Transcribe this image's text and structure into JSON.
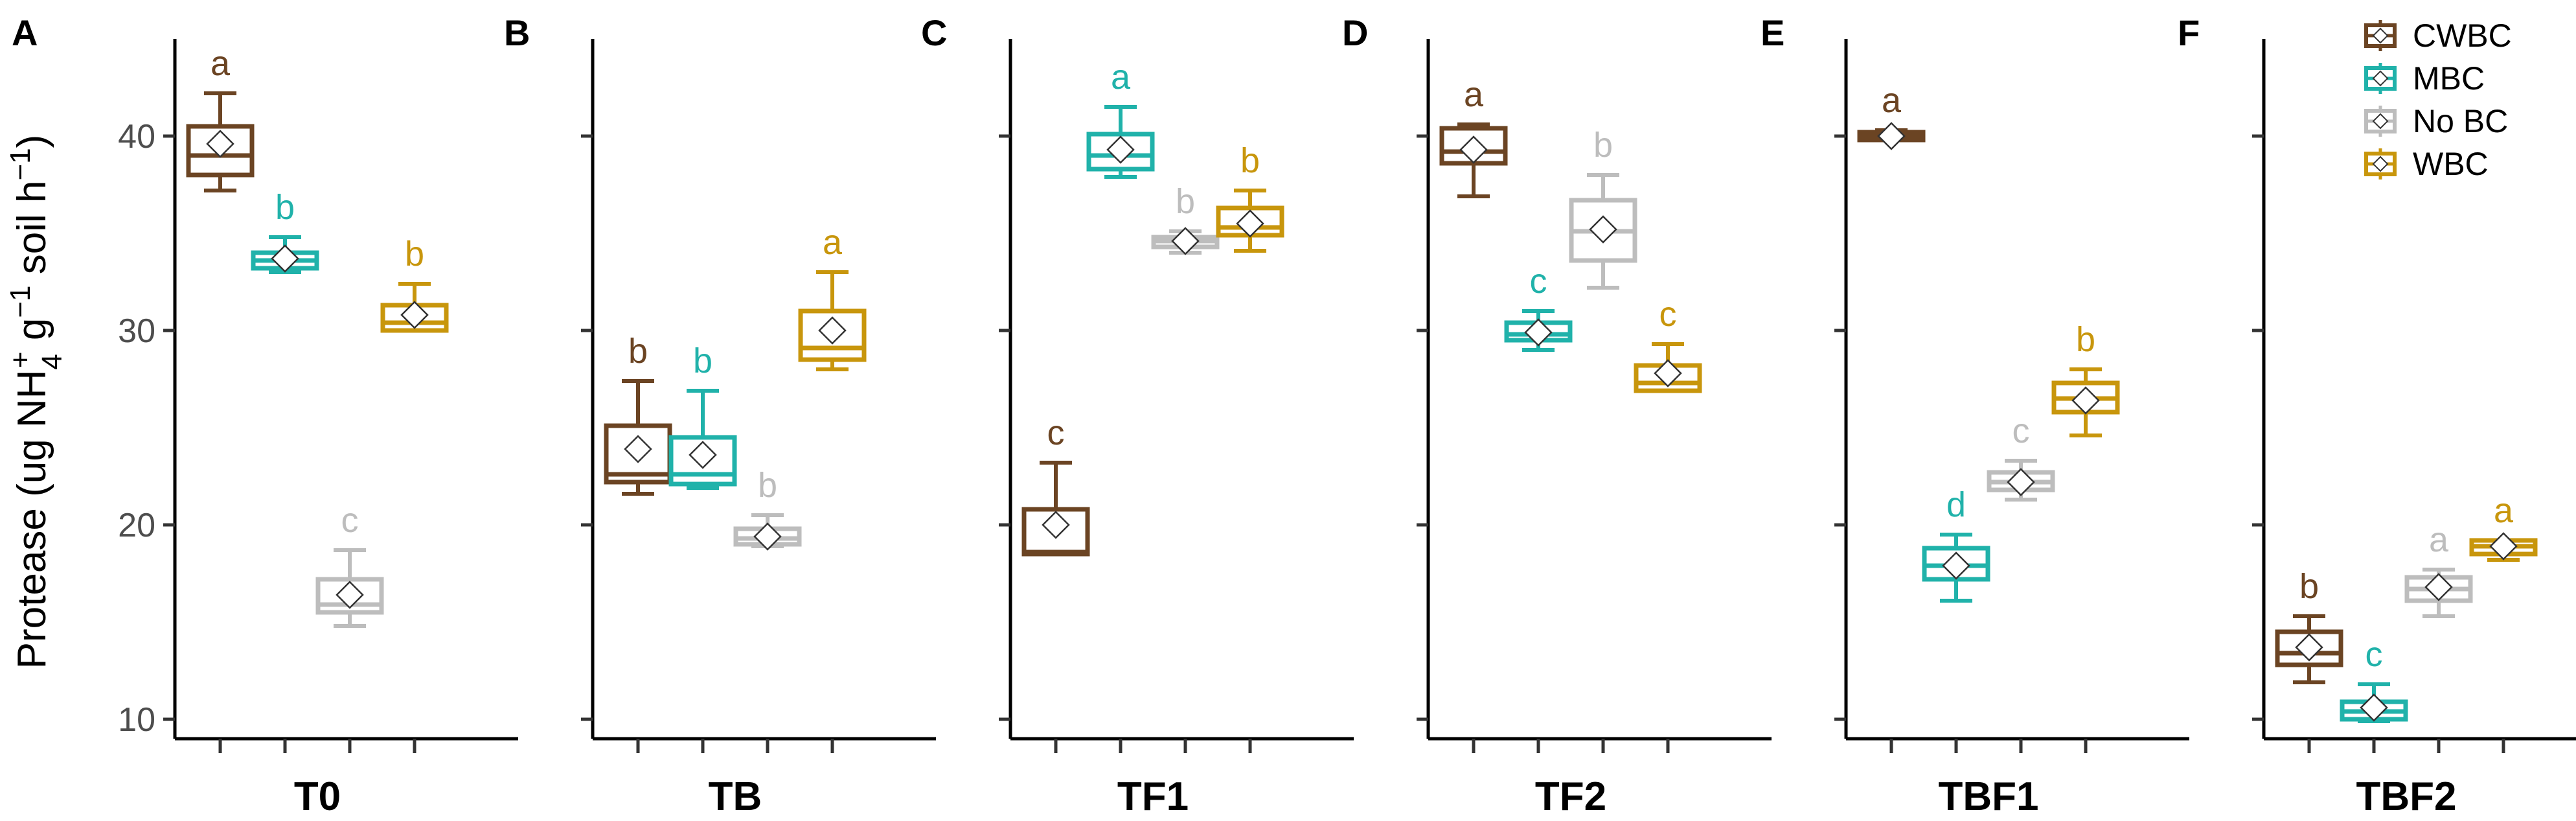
{
  "chart_data": {
    "type": "box",
    "ylabel": "Protease (ug NH4+ g−1 soil h−1)",
    "ylabel_parts": {
      "prefix": "Protease (ug NH",
      "sub": "4",
      "sup_plus": "+",
      "mid": " g",
      "sup_neg1": "−1",
      "suffix": " soil h",
      "sup_neg1b": "−1",
      "close": ")"
    },
    "ylim": [
      9,
      45
    ],
    "yticks": [
      10,
      20,
      30,
      40
    ],
    "groups": [
      "CWBC",
      "MBC",
      "No BC",
      "WBC"
    ],
    "colors": {
      "CWBC": "#6b4423",
      "MBC": "#20b2aa",
      "No BC": "#bdbdbd",
      "WBC": "#c8960c"
    },
    "legend": [
      "CWBC",
      "MBC",
      "No BC",
      "WBC"
    ],
    "panels": [
      {
        "letter": "A",
        "label": "T0",
        "boxes": [
          {
            "group": "CWBC",
            "min": 37.2,
            "q1": 38.0,
            "median": 39.0,
            "q3": 40.5,
            "max": 42.2,
            "mean": 39.6,
            "sig": "a"
          },
          {
            "group": "MBC",
            "min": 33.0,
            "q1": 33.2,
            "median": 33.6,
            "q3": 34.0,
            "max": 34.8,
            "mean": 33.7,
            "sig": "b"
          },
          {
            "group": "No BC",
            "min": 14.8,
            "q1": 15.5,
            "median": 15.9,
            "q3": 17.2,
            "max": 18.7,
            "mean": 16.4,
            "sig": "c"
          },
          {
            "group": "WBC",
            "min": 30.0,
            "q1": 30.0,
            "median": 30.4,
            "q3": 31.3,
            "max": 32.4,
            "mean": 30.8,
            "sig": "b"
          }
        ]
      },
      {
        "letter": "B",
        "label": "TB",
        "boxes": [
          {
            "group": "CWBC",
            "min": 21.6,
            "q1": 22.2,
            "median": 22.6,
            "q3": 25.1,
            "max": 27.4,
            "mean": 23.9,
            "sig": "b"
          },
          {
            "group": "MBC",
            "min": 21.9,
            "q1": 22.1,
            "median": 22.6,
            "q3": 24.5,
            "max": 26.9,
            "mean": 23.6,
            "sig": "b"
          },
          {
            "group": "No BC",
            "min": 18.9,
            "q1": 19.0,
            "median": 19.3,
            "q3": 19.8,
            "max": 20.5,
            "mean": 19.4,
            "sig": "b"
          },
          {
            "group": "WBC",
            "min": 28.0,
            "q1": 28.5,
            "median": 29.1,
            "q3": 31.0,
            "max": 33.0,
            "mean": 30.0,
            "sig": "a"
          }
        ]
      },
      {
        "letter": "C",
        "label": "TF1",
        "boxes": [
          {
            "group": "CWBC",
            "min": 18.5,
            "q1": 18.5,
            "median": 18.6,
            "q3": 20.8,
            "max": 23.2,
            "mean": 20.0,
            "sig": "c"
          },
          {
            "group": "MBC",
            "min": 37.9,
            "q1": 38.3,
            "median": 39.0,
            "q3": 40.1,
            "max": 41.5,
            "mean": 39.3,
            "sig": "a"
          },
          {
            "group": "No BC",
            "min": 34.0,
            "q1": 34.3,
            "median": 34.6,
            "q3": 34.8,
            "max": 35.1,
            "mean": 34.6,
            "sig": "b"
          },
          {
            "group": "WBC",
            "min": 34.1,
            "q1": 34.9,
            "median": 35.3,
            "q3": 36.3,
            "max": 37.2,
            "mean": 35.5,
            "sig": "b"
          }
        ]
      },
      {
        "letter": "D",
        "label": "TF2",
        "boxes": [
          {
            "group": "CWBC",
            "min": 36.9,
            "q1": 38.6,
            "median": 39.2,
            "q3": 40.4,
            "max": 40.6,
            "mean": 39.3,
            "sig": "a"
          },
          {
            "group": "MBC",
            "min": 29.0,
            "q1": 29.5,
            "median": 29.8,
            "q3": 30.4,
            "max": 31.0,
            "mean": 29.9,
            "sig": "c"
          },
          {
            "group": "No BC",
            "min": 32.2,
            "q1": 33.6,
            "median": 35.1,
            "q3": 36.7,
            "max": 38.0,
            "mean": 35.2,
            "sig": "b"
          },
          {
            "group": "WBC",
            "min": 26.9,
            "q1": 26.9,
            "median": 27.3,
            "q3": 28.2,
            "max": 29.3,
            "mean": 27.8,
            "sig": "c"
          }
        ]
      },
      {
        "letter": "E",
        "label": "TBF1",
        "boxes": [
          {
            "group": "CWBC",
            "min": 39.8,
            "q1": 39.8,
            "median": 40.0,
            "q3": 40.2,
            "max": 40.3,
            "mean": 40.0,
            "sig": "a"
          },
          {
            "group": "MBC",
            "min": 16.1,
            "q1": 17.2,
            "median": 17.9,
            "q3": 18.8,
            "max": 19.5,
            "mean": 17.9,
            "sig": "d"
          },
          {
            "group": "No BC",
            "min": 21.3,
            "q1": 21.8,
            "median": 22.2,
            "q3": 22.7,
            "max": 23.3,
            "mean": 22.2,
            "sig": "c"
          },
          {
            "group": "WBC",
            "min": 24.6,
            "q1": 25.8,
            "median": 26.5,
            "q3": 27.3,
            "max": 28.0,
            "mean": 26.4,
            "sig": "b"
          }
        ]
      },
      {
        "letter": "F",
        "label": "TBF2",
        "boxes": [
          {
            "group": "CWBC",
            "min": 11.9,
            "q1": 12.8,
            "median": 13.4,
            "q3": 14.5,
            "max": 15.3,
            "mean": 13.7,
            "sig": "b"
          },
          {
            "group": "MBC",
            "min": 9.9,
            "q1": 10.0,
            "median": 10.4,
            "q3": 10.9,
            "max": 11.8,
            "mean": 10.6,
            "sig": "c"
          },
          {
            "group": "No BC",
            "min": 15.3,
            "q1": 16.1,
            "median": 16.7,
            "q3": 17.3,
            "max": 17.7,
            "mean": 16.8,
            "sig": "a"
          },
          {
            "group": "WBC",
            "min": 18.2,
            "q1": 18.5,
            "median": 18.9,
            "q3": 19.2,
            "max": 19.2,
            "mean": 18.9,
            "sig": "a"
          }
        ]
      }
    ]
  }
}
